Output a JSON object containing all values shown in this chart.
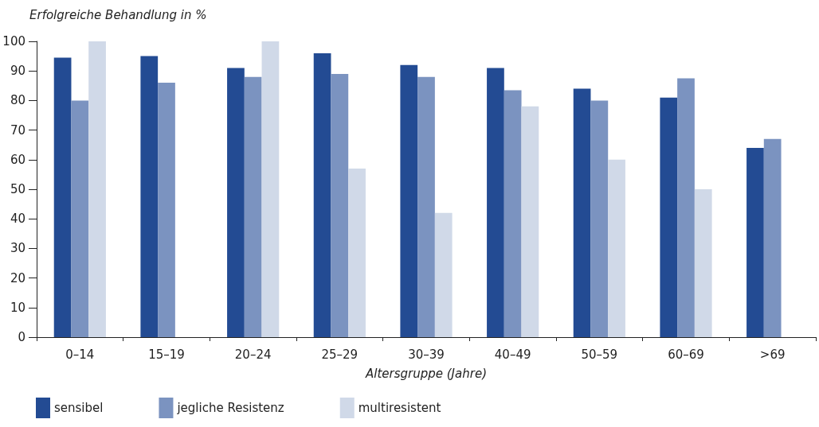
{
  "chart_data": {
    "type": "bar",
    "title": "Erfolgreiche Behandlung in %",
    "xlabel": "Altersgruppe (Jahre)",
    "categories": [
      "0–14",
      "15–19",
      "20–24",
      "25–29",
      "30–39",
      "40–49",
      "50–59",
      "60–69",
      ">69"
    ],
    "series": [
      {
        "name": "sensibel",
        "color": "#234b93",
        "values": [
          94.5,
          95,
          91,
          96,
          92,
          91,
          84,
          81,
          64
        ]
      },
      {
        "name": "jegliche Resistenz",
        "color": "#7b93c0",
        "values": [
          80,
          86,
          88,
          89,
          88,
          83.5,
          80,
          87.5,
          67
        ]
      },
      {
        "name": "multiresistent",
        "color": "#d0d9e8",
        "values": [
          100,
          null,
          100,
          57,
          42,
          78,
          60,
          50,
          null
        ]
      }
    ],
    "ylim": [
      0,
      100
    ],
    "yticks": [
      0,
      10,
      20,
      30,
      40,
      50,
      60,
      70,
      80,
      90,
      100
    ],
    "grid": false,
    "legend": "bottom left"
  }
}
